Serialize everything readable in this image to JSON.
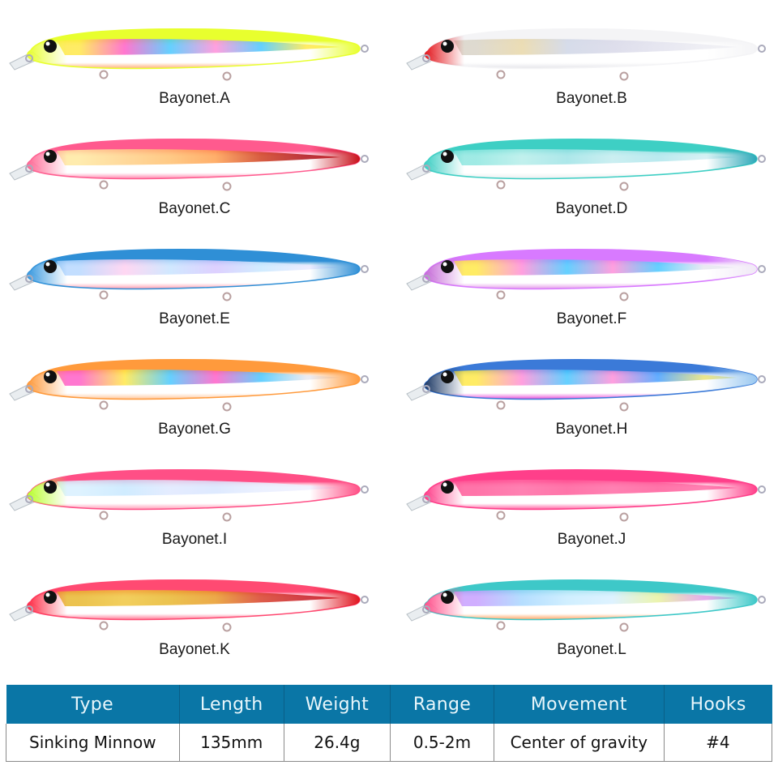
{
  "lures": [
    {
      "label": "Bayonet.A",
      "back": "#e8ff2e",
      "belly": "#ffb07a",
      "head": "#e8ff2e",
      "tail": "#e8ff2e",
      "pattern": [
        "#ffe84a",
        "#ff5fc8",
        "#49c8ff",
        "#ff8fd9",
        "#49c8ff",
        "#ffe84a"
      ]
    },
    {
      "label": "Bayonet.B",
      "back": "#f4f4f6",
      "belly": "#e6e6ea",
      "head": "#e4161c",
      "tail": "#f4f4f6",
      "pattern": [
        "#d9d4c8",
        "#e8d7a8",
        "#cfd6e6",
        "#d8d8e8",
        "#e2e2ee",
        "#ececf2"
      ]
    },
    {
      "label": "Bayonet.C",
      "back": "#ff5a8e",
      "belly": "#ff8ab0",
      "head": "#ff6a96",
      "tail": "#c8101a",
      "pattern": [
        "#ffe8a0",
        "#ffd28a",
        "#ffc070",
        "#ffa050",
        "#d04020",
        "#b01018"
      ]
    },
    {
      "label": "Bayonet.D",
      "back": "#3ecfc4",
      "belly": "#e8eef0",
      "head": "#3ecfc4",
      "tail": "#2aa8b8",
      "pattern": [
        "#8fe7e0",
        "#b6eeea",
        "#9ee3e6",
        "#c2ecef",
        "#aee6ec",
        "#d0eef2"
      ]
    },
    {
      "label": "Bayonet.E",
      "back": "#2f8fd6",
      "belly": "#ff9eb0",
      "head": "#3a9ae0",
      "tail": "#2f8fd6",
      "pattern": [
        "#b8d8ff",
        "#ffd0f0",
        "#c8e4ff",
        "#d8c8ff",
        "#c8e8ff",
        "#e8e8ff"
      ]
    },
    {
      "label": "Bayonet.F",
      "back": "#d87aff",
      "belly": "#e49ae8",
      "head": "#c66ad8",
      "tail": "#f0e8f6",
      "pattern": [
        "#ffe84a",
        "#ff8fd9",
        "#49c8ff",
        "#ff8fd9",
        "#49c8ff",
        "#e6e6f0"
      ]
    },
    {
      "label": "Bayonet.G",
      "back": "#ff9a3c",
      "belly": "#ffc69a",
      "head": "#ff9a3c",
      "tail": "#ff9a3c",
      "pattern": [
        "#ff5fc8",
        "#ffe84a",
        "#49c8ff",
        "#ff5fc8",
        "#49c8ff",
        "#e8e8f0"
      ]
    },
    {
      "label": "Bayonet.H",
      "back": "#3b7ad8",
      "belly": "#e84ed8",
      "head": "#1e3a66",
      "tail": "#9ac8f0",
      "pattern": [
        "#ffe84a",
        "#ff8fd9",
        "#49c8ff",
        "#ff8fd9",
        "#49a0ff",
        "#e6e27a"
      ]
    },
    {
      "label": "Bayonet.I",
      "back": "#ff4f86",
      "belly": "#ff9ab6",
      "head": "#baff2e",
      "tail": "#ff4f86",
      "pattern": [
        "#d8f0ff",
        "#c8e8ff",
        "#e0e8ff",
        "#d8e6ff",
        "#e8eeff",
        "#f0f0ff"
      ]
    },
    {
      "label": "Bayonet.J",
      "back": "#ff3f8a",
      "belly": "#ff5fa0",
      "head": "#ff3f8a",
      "tail": "#ff3f8a",
      "pattern": [
        "#ff5c9a",
        "#ff6aa4",
        "#ff5c9a",
        "#ff6aa4",
        "#ff5c9a",
        "#ff6aa4"
      ]
    },
    {
      "label": "Bayonet.K",
      "back": "#ff4a72",
      "belly": "#ff7a96",
      "head": "#ff2a44",
      "tail": "#e0141e",
      "pattern": [
        "#e8b830",
        "#f0c640",
        "#e8b830",
        "#e89a2a",
        "#d8402a",
        "#c81a24"
      ]
    },
    {
      "label": "Bayonet.L",
      "back": "#3ec8c8",
      "belly": "#ffa868",
      "head": "#ff4f8a",
      "tail": "#3ec8c8",
      "pattern": [
        "#c8a0ff",
        "#a8d8ff",
        "#c8ecff",
        "#d8f0ff",
        "#e8f2a0",
        "#e0a0e8"
      ]
    }
  ],
  "spec_table": {
    "headers": [
      "Type",
      "Length",
      "Weight",
      "Range",
      "Movement",
      "Hooks"
    ],
    "values": [
      "Sinking Minnow",
      "135mm",
      "26.4g",
      "0.5-2m",
      "Center of gravity",
      "#4"
    ]
  },
  "colors": {
    "header_bg": "#0a76a6",
    "header_text": "#e8f6fb"
  }
}
